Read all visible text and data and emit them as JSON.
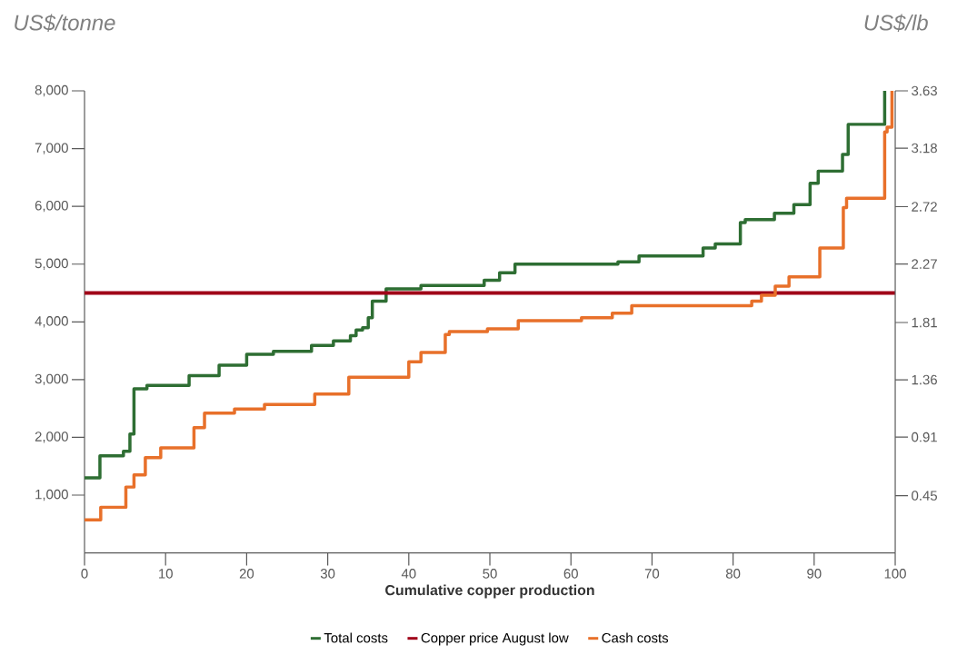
{
  "chart_data": {
    "type": "step",
    "xlabel": "Cumulative copper production",
    "ylabel": "US$/tonne",
    "y2label": "US$/lb",
    "xlim": [
      0,
      100
    ],
    "xticks": [
      0,
      10,
      20,
      30,
      40,
      50,
      60,
      70,
      80,
      90,
      100
    ],
    "ylim": [
      0,
      8000
    ],
    "yticks": [
      {
        "value": 1000,
        "label": "1,000"
      },
      {
        "value": 2000,
        "label": "2,000"
      },
      {
        "value": 3000,
        "label": "3,000"
      },
      {
        "value": 4000,
        "label": "4,000"
      },
      {
        "value": 5000,
        "label": "5,000"
      },
      {
        "value": 6000,
        "label": "6,000"
      },
      {
        "value": 7000,
        "label": "7,000"
      },
      {
        "value": 8000,
        "label": "8,000"
      }
    ],
    "y2lim": [
      0,
      3.63
    ],
    "y2ticks": [
      0.45,
      0.91,
      1.36,
      1.81,
      2.27,
      2.72,
      3.18,
      3.63
    ],
    "legend": "bottom",
    "grid": false,
    "marker": "none",
    "series": [
      {
        "name": "Total costs",
        "color": "#2e6e33",
        "x": [
          0,
          1.9,
          4.8,
          5.6,
          6.1,
          7.7,
          12.9,
          16.6,
          20.0,
          23.3,
          28.0,
          30.7,
          32.8,
          33.5,
          34.3,
          35.0,
          35.5,
          37.2,
          41.5,
          49.3,
          51.2,
          53.1,
          65.8,
          68.4,
          76.3,
          77.8,
          80.9,
          81.5,
          85.1,
          87.5,
          89.5,
          90.5,
          93.5,
          94.2,
          98.7
        ],
        "values": [
          1300,
          1680,
          1760,
          2060,
          2840,
          2900,
          3070,
          3250,
          3440,
          3490,
          3590,
          3670,
          3760,
          3860,
          3900,
          4070,
          4360,
          4570,
          4630,
          4720,
          4850,
          5000,
          5040,
          5140,
          5280,
          5350,
          5720,
          5770,
          5880,
          6030,
          6400,
          6610,
          6900,
          7420,
          8000
        ]
      },
      {
        "name": "Copper price August low",
        "type": "line",
        "color": "#a00018",
        "x": [
          0,
          100
        ],
        "values": [
          4500,
          4500
        ]
      },
      {
        "name": "Cash costs",
        "color": "#e8702a",
        "x": [
          0,
          2.0,
          5.1,
          6.1,
          7.5,
          9.4,
          13.5,
          14.8,
          18.5,
          22.2,
          28.4,
          32.6,
          40.0,
          41.5,
          44.5,
          45.0,
          49.7,
          53.5,
          61.3,
          65.1,
          67.5,
          82.3,
          83.5,
          85.2,
          86.9,
          90.7,
          93.6,
          94.0,
          98.7,
          99.0,
          99.6
        ],
        "values": [
          570,
          790,
          1140,
          1350,
          1650,
          1820,
          2170,
          2420,
          2490,
          2570,
          2750,
          3040,
          3310,
          3470,
          3780,
          3830,
          3880,
          4020,
          4070,
          4150,
          4280,
          4360,
          4460,
          4620,
          4780,
          5280,
          5980,
          6140,
          7290,
          7370,
          8000
        ]
      }
    ]
  }
}
